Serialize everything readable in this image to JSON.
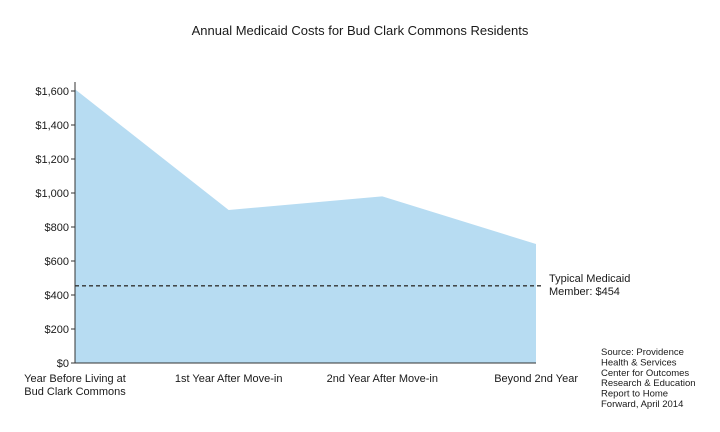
{
  "chart_data": {
    "type": "area",
    "title": "Annual Medicaid Costs for Bud Clark Commons Residents",
    "xlabel": "",
    "ylabel": "",
    "categories": [
      "Year Before Living at|Bud Clark Commons",
      "1st Year After Move-in",
      "2nd Year After Move-in",
      "Beyond 2nd Year"
    ],
    "values": [
      1610,
      900,
      980,
      700
    ],
    "ylim": [
      0,
      1600
    ],
    "yticks": [
      0,
      200,
      400,
      600,
      800,
      1000,
      1200,
      1400,
      1600
    ],
    "ytick_labels": [
      "$0",
      "$200",
      "$400",
      "$600",
      "$800",
      "$1,000",
      "$1,200",
      "$1,400",
      "$1,600"
    ],
    "grid": false,
    "reference_line": {
      "value": 454,
      "label_lines": [
        "Typical Medicaid",
        "Member: $454"
      ]
    },
    "source_lines": [
      "Source: Providence",
      "Health & Services",
      "Center for Outcomes",
      "Research & Education",
      "Report to Home",
      "Forward, April 2014"
    ],
    "colors": {
      "fill": "#b7dcf2",
      "axis": "#333333",
      "ref_line": "#333333"
    }
  }
}
